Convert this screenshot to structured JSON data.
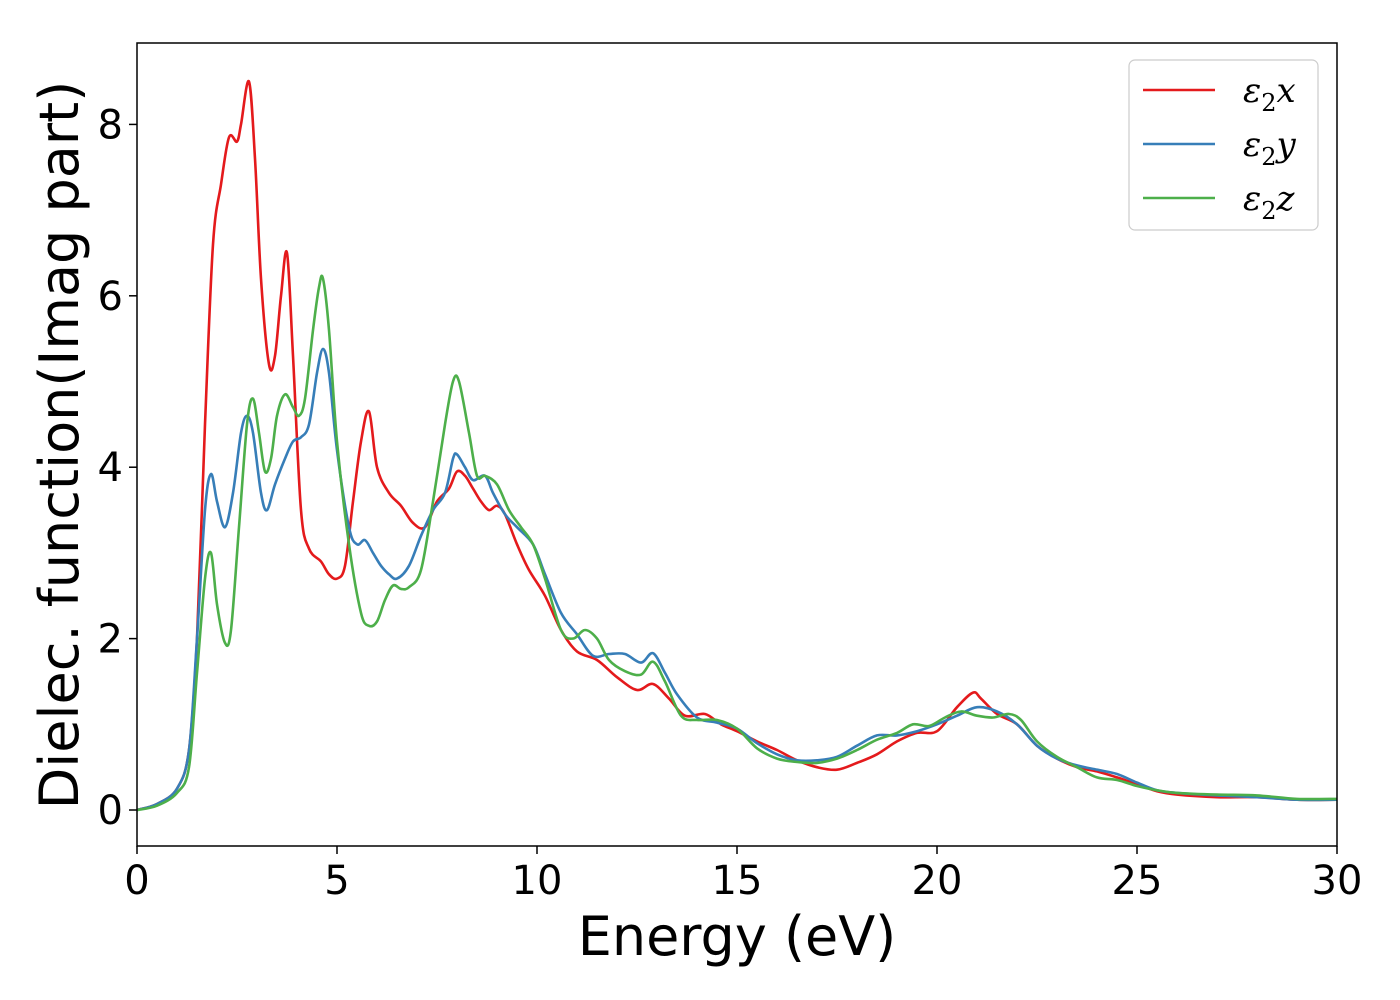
{
  "chart_data": {
    "type": "line",
    "title": "",
    "xlabel": "Energy (eV)",
    "ylabel": "Dielec. function(Imag part)",
    "xlim": [
      0,
      30
    ],
    "ylim": [
      -0.42,
      8.95
    ],
    "xticks": [
      0,
      5,
      10,
      15,
      20,
      25,
      30
    ],
    "yticks": [
      0,
      2,
      4,
      6,
      8
    ],
    "xtick_labels": [
      "0",
      "5",
      "10",
      "15",
      "20",
      "25",
      "30"
    ],
    "ytick_labels": [
      "0",
      "2",
      "4",
      "6",
      "8"
    ],
    "grid": false,
    "legend_position": "top-right",
    "series": [
      {
        "name": "ε2x",
        "legend_symbol": "ε",
        "legend_sub": "2",
        "legend_var": "x",
        "color": "#e41a1c",
        "points": [
          [
            0,
            0
          ],
          [
            0.5,
            0.07
          ],
          [
            1.0,
            0.25
          ],
          [
            1.3,
            0.7
          ],
          [
            1.5,
            2.0
          ],
          [
            1.7,
            4.5
          ],
          [
            1.9,
            6.6
          ],
          [
            2.1,
            7.3
          ],
          [
            2.3,
            7.85
          ],
          [
            2.5,
            7.8
          ],
          [
            2.6,
            8.0
          ],
          [
            2.8,
            8.5
          ],
          [
            2.95,
            7.6
          ],
          [
            3.1,
            6.2
          ],
          [
            3.3,
            5.2
          ],
          [
            3.45,
            5.3
          ],
          [
            3.6,
            6.0
          ],
          [
            3.75,
            6.5
          ],
          [
            3.9,
            5.3
          ],
          [
            4.1,
            3.5
          ],
          [
            4.3,
            3.05
          ],
          [
            4.6,
            2.9
          ],
          [
            4.8,
            2.75
          ],
          [
            5.0,
            2.7
          ],
          [
            5.2,
            2.85
          ],
          [
            5.4,
            3.6
          ],
          [
            5.6,
            4.3
          ],
          [
            5.8,
            4.65
          ],
          [
            6.0,
            4.0
          ],
          [
            6.3,
            3.7
          ],
          [
            6.6,
            3.55
          ],
          [
            6.9,
            3.35
          ],
          [
            7.2,
            3.3
          ],
          [
            7.5,
            3.6
          ],
          [
            7.8,
            3.75
          ],
          [
            8.0,
            3.95
          ],
          [
            8.2,
            3.9
          ],
          [
            8.4,
            3.75
          ],
          [
            8.6,
            3.6
          ],
          [
            8.8,
            3.5
          ],
          [
            9.0,
            3.55
          ],
          [
            9.2,
            3.45
          ],
          [
            9.5,
            3.1
          ],
          [
            9.8,
            2.8
          ],
          [
            10.2,
            2.5
          ],
          [
            10.6,
            2.1
          ],
          [
            11.0,
            1.85
          ],
          [
            11.5,
            1.75
          ],
          [
            12.0,
            1.55
          ],
          [
            12.5,
            1.4
          ],
          [
            12.9,
            1.47
          ],
          [
            13.3,
            1.3
          ],
          [
            13.7,
            1.1
          ],
          [
            14.2,
            1.12
          ],
          [
            14.6,
            1.0
          ],
          [
            15.0,
            0.92
          ],
          [
            15.5,
            0.8
          ],
          [
            16.0,
            0.7
          ],
          [
            16.5,
            0.58
          ],
          [
            17.0,
            0.5
          ],
          [
            17.5,
            0.47
          ],
          [
            18.0,
            0.55
          ],
          [
            18.5,
            0.65
          ],
          [
            19.0,
            0.8
          ],
          [
            19.5,
            0.9
          ],
          [
            20.0,
            0.92
          ],
          [
            20.5,
            1.2
          ],
          [
            20.9,
            1.37
          ],
          [
            21.1,
            1.3
          ],
          [
            21.5,
            1.12
          ],
          [
            22.0,
            1.0
          ],
          [
            22.5,
            0.75
          ],
          [
            23.0,
            0.6
          ],
          [
            23.5,
            0.5
          ],
          [
            24.0,
            0.45
          ],
          [
            24.5,
            0.38
          ],
          [
            25.0,
            0.3
          ],
          [
            25.5,
            0.22
          ],
          [
            26.0,
            0.18
          ],
          [
            27.0,
            0.15
          ],
          [
            28.0,
            0.15
          ],
          [
            29.0,
            0.12
          ],
          [
            30.0,
            0.12
          ]
        ]
      },
      {
        "name": "ε2y",
        "legend_symbol": "ε",
        "legend_sub": "2",
        "legend_var": "y",
        "color": "#377eb8",
        "points": [
          [
            0,
            0
          ],
          [
            0.5,
            0.07
          ],
          [
            1.0,
            0.25
          ],
          [
            1.3,
            0.7
          ],
          [
            1.5,
            2.0
          ],
          [
            1.7,
            3.5
          ],
          [
            1.85,
            3.92
          ],
          [
            2.0,
            3.6
          ],
          [
            2.2,
            3.3
          ],
          [
            2.4,
            3.7
          ],
          [
            2.6,
            4.4
          ],
          [
            2.75,
            4.6
          ],
          [
            2.9,
            4.4
          ],
          [
            3.1,
            3.7
          ],
          [
            3.25,
            3.5
          ],
          [
            3.45,
            3.8
          ],
          [
            3.7,
            4.1
          ],
          [
            3.9,
            4.3
          ],
          [
            4.1,
            4.35
          ],
          [
            4.3,
            4.5
          ],
          [
            4.5,
            5.1
          ],
          [
            4.65,
            5.38
          ],
          [
            4.8,
            5.1
          ],
          [
            5.0,
            4.2
          ],
          [
            5.3,
            3.3
          ],
          [
            5.5,
            3.1
          ],
          [
            5.7,
            3.15
          ],
          [
            5.9,
            3.0
          ],
          [
            6.1,
            2.85
          ],
          [
            6.3,
            2.75
          ],
          [
            6.5,
            2.7
          ],
          [
            6.8,
            2.85
          ],
          [
            7.1,
            3.2
          ],
          [
            7.4,
            3.5
          ],
          [
            7.7,
            3.7
          ],
          [
            7.9,
            4.1
          ],
          [
            8.0,
            4.15
          ],
          [
            8.2,
            4.0
          ],
          [
            8.4,
            3.85
          ],
          [
            8.7,
            3.9
          ],
          [
            8.9,
            3.7
          ],
          [
            9.2,
            3.45
          ],
          [
            9.5,
            3.3
          ],
          [
            9.9,
            3.1
          ],
          [
            10.2,
            2.75
          ],
          [
            10.6,
            2.3
          ],
          [
            11.0,
            2.05
          ],
          [
            11.4,
            1.8
          ],
          [
            11.8,
            1.82
          ],
          [
            12.2,
            1.82
          ],
          [
            12.6,
            1.72
          ],
          [
            12.9,
            1.83
          ],
          [
            13.2,
            1.6
          ],
          [
            13.5,
            1.35
          ],
          [
            14.0,
            1.08
          ],
          [
            14.5,
            1.02
          ],
          [
            15.0,
            0.95
          ],
          [
            15.5,
            0.78
          ],
          [
            16.0,
            0.65
          ],
          [
            16.5,
            0.58
          ],
          [
            17.0,
            0.58
          ],
          [
            17.5,
            0.62
          ],
          [
            18.0,
            0.75
          ],
          [
            18.5,
            0.87
          ],
          [
            19.0,
            0.87
          ],
          [
            19.5,
            0.92
          ],
          [
            20.0,
            1.0
          ],
          [
            20.5,
            1.1
          ],
          [
            21.0,
            1.2
          ],
          [
            21.5,
            1.15
          ],
          [
            22.0,
            1.0
          ],
          [
            22.5,
            0.75
          ],
          [
            23.0,
            0.6
          ],
          [
            23.5,
            0.52
          ],
          [
            24.0,
            0.47
          ],
          [
            24.5,
            0.42
          ],
          [
            25.0,
            0.32
          ],
          [
            25.5,
            0.23
          ],
          [
            26.0,
            0.2
          ],
          [
            27.0,
            0.17
          ],
          [
            28.0,
            0.15
          ],
          [
            29.0,
            0.12
          ],
          [
            30.0,
            0.12
          ]
        ]
      },
      {
        "name": "ε2z",
        "legend_symbol": "ε",
        "legend_sub": "2",
        "legend_var": "z",
        "color": "#4daf4a",
        "points": [
          [
            0,
            0
          ],
          [
            0.5,
            0.05
          ],
          [
            1.0,
            0.2
          ],
          [
            1.3,
            0.5
          ],
          [
            1.5,
            1.6
          ],
          [
            1.7,
            2.7
          ],
          [
            1.85,
            3.0
          ],
          [
            2.0,
            2.4
          ],
          [
            2.2,
            1.95
          ],
          [
            2.35,
            2.1
          ],
          [
            2.55,
            3.3
          ],
          [
            2.75,
            4.5
          ],
          [
            2.9,
            4.8
          ],
          [
            3.05,
            4.4
          ],
          [
            3.2,
            3.95
          ],
          [
            3.35,
            4.1
          ],
          [
            3.5,
            4.6
          ],
          [
            3.7,
            4.85
          ],
          [
            3.9,
            4.7
          ],
          [
            4.05,
            4.6
          ],
          [
            4.2,
            4.8
          ],
          [
            4.4,
            5.6
          ],
          [
            4.55,
            6.1
          ],
          [
            4.65,
            6.2
          ],
          [
            4.8,
            5.6
          ],
          [
            5.0,
            4.3
          ],
          [
            5.3,
            3.1
          ],
          [
            5.6,
            2.3
          ],
          [
            5.8,
            2.15
          ],
          [
            6.0,
            2.2
          ],
          [
            6.2,
            2.45
          ],
          [
            6.4,
            2.62
          ],
          [
            6.6,
            2.58
          ],
          [
            6.8,
            2.6
          ],
          [
            7.1,
            2.8
          ],
          [
            7.4,
            3.6
          ],
          [
            7.7,
            4.5
          ],
          [
            7.9,
            5.0
          ],
          [
            8.05,
            5.0
          ],
          [
            8.3,
            4.4
          ],
          [
            8.5,
            3.9
          ],
          [
            8.7,
            3.9
          ],
          [
            9.0,
            3.8
          ],
          [
            9.3,
            3.5
          ],
          [
            9.6,
            3.3
          ],
          [
            9.9,
            3.1
          ],
          [
            10.2,
            2.7
          ],
          [
            10.6,
            2.1
          ],
          [
            10.9,
            2.0
          ],
          [
            11.2,
            2.1
          ],
          [
            11.5,
            2.0
          ],
          [
            11.8,
            1.75
          ],
          [
            12.2,
            1.62
          ],
          [
            12.6,
            1.58
          ],
          [
            12.9,
            1.73
          ],
          [
            13.2,
            1.5
          ],
          [
            13.6,
            1.1
          ],
          [
            14.0,
            1.05
          ],
          [
            14.5,
            1.05
          ],
          [
            15.0,
            0.95
          ],
          [
            15.5,
            0.72
          ],
          [
            16.0,
            0.6
          ],
          [
            16.5,
            0.56
          ],
          [
            17.0,
            0.55
          ],
          [
            17.5,
            0.6
          ],
          [
            18.0,
            0.7
          ],
          [
            18.5,
            0.82
          ],
          [
            19.0,
            0.9
          ],
          [
            19.4,
            1.0
          ],
          [
            19.8,
            0.98
          ],
          [
            20.2,
            1.08
          ],
          [
            20.6,
            1.15
          ],
          [
            21.0,
            1.1
          ],
          [
            21.4,
            1.08
          ],
          [
            21.8,
            1.12
          ],
          [
            22.1,
            1.05
          ],
          [
            22.5,
            0.8
          ],
          [
            23.0,
            0.62
          ],
          [
            23.5,
            0.5
          ],
          [
            24.0,
            0.38
          ],
          [
            24.5,
            0.35
          ],
          [
            25.0,
            0.28
          ],
          [
            25.5,
            0.23
          ],
          [
            26.0,
            0.2
          ],
          [
            27.0,
            0.18
          ],
          [
            28.0,
            0.17
          ],
          [
            29.0,
            0.13
          ],
          [
            30.0,
            0.13
          ]
        ]
      }
    ]
  }
}
